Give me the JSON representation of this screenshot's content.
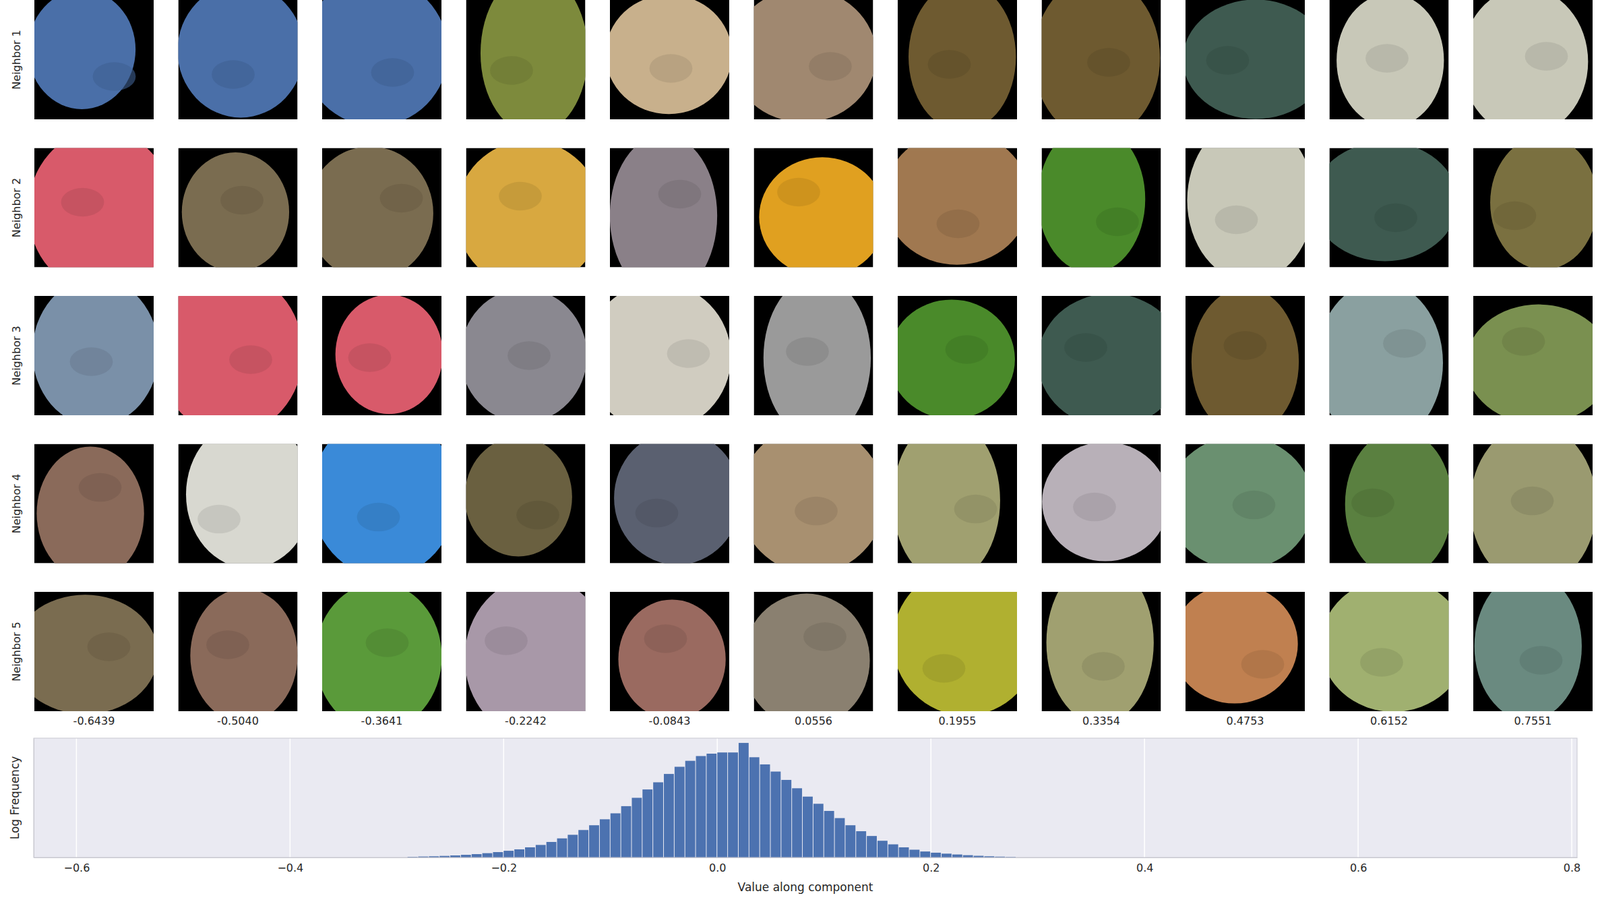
{
  "chart_data": {
    "type": "histogram",
    "x_label": "Value along component",
    "y_label": "Log Frequency",
    "bins": [
      -0.29,
      -0.28,
      -0.27,
      -0.26,
      -0.25,
      -0.24,
      -0.23,
      -0.22,
      -0.21,
      -0.2,
      -0.19,
      -0.18,
      -0.17,
      -0.16,
      -0.15,
      -0.14,
      -0.13,
      -0.12,
      -0.11,
      -0.1,
      -0.09,
      -0.08,
      -0.07,
      -0.06,
      -0.05,
      -0.04,
      -0.03,
      -0.02,
      -0.01,
      0.0,
      0.01,
      0.02,
      0.03,
      0.04,
      0.05,
      0.06,
      0.07,
      0.08,
      0.09,
      0.1,
      0.11,
      0.12,
      0.13,
      0.14,
      0.15,
      0.16,
      0.17,
      0.18,
      0.19,
      0.2,
      0.21,
      0.22,
      0.23,
      0.24,
      0.25,
      0.26,
      0.27,
      0.28
    ],
    "values": [
      0.005,
      0.008,
      0.01,
      0.013,
      0.017,
      0.022,
      0.028,
      0.036,
      0.045,
      0.056,
      0.068,
      0.085,
      0.105,
      0.13,
      0.16,
      0.19,
      0.23,
      0.27,
      0.32,
      0.37,
      0.43,
      0.5,
      0.57,
      0.63,
      0.7,
      0.76,
      0.81,
      0.85,
      0.87,
      0.88,
      0.88,
      0.96,
      0.84,
      0.78,
      0.72,
      0.65,
      0.58,
      0.51,
      0.45,
      0.39,
      0.33,
      0.27,
      0.22,
      0.18,
      0.14,
      0.11,
      0.085,
      0.065,
      0.05,
      0.04,
      0.032,
      0.025,
      0.019,
      0.014,
      0.01,
      0.007,
      0.004
    ],
    "color": "#4c72b0",
    "xlim": [
      -0.64,
      0.805
    ],
    "ylim": [
      0,
      1
    ],
    "xticks": [
      {
        "value": -0.6,
        "label": "−0.6"
      },
      {
        "value": -0.4,
        "label": "−0.4"
      },
      {
        "value": -0.2,
        "label": "−0.2"
      },
      {
        "value": 0.0,
        "label": "0.0"
      },
      0.2,
      0.4,
      0.6,
      0.8
    ],
    "grid": true,
    "tick_labels": "x"
  },
  "patch_grid": {
    "row_labels": [
      "Neighbor 1",
      "Neighbor 2",
      "Neighbor 3",
      "Neighbor 4",
      "Neighbor 5"
    ],
    "column_labels": [
      "-0.6439",
      "-0.5040",
      "-0.3641",
      "-0.2242",
      "-0.0843",
      "0.0556",
      "0.1955",
      "0.3354",
      "0.4753",
      "0.6152",
      "0.7551"
    ]
  }
}
